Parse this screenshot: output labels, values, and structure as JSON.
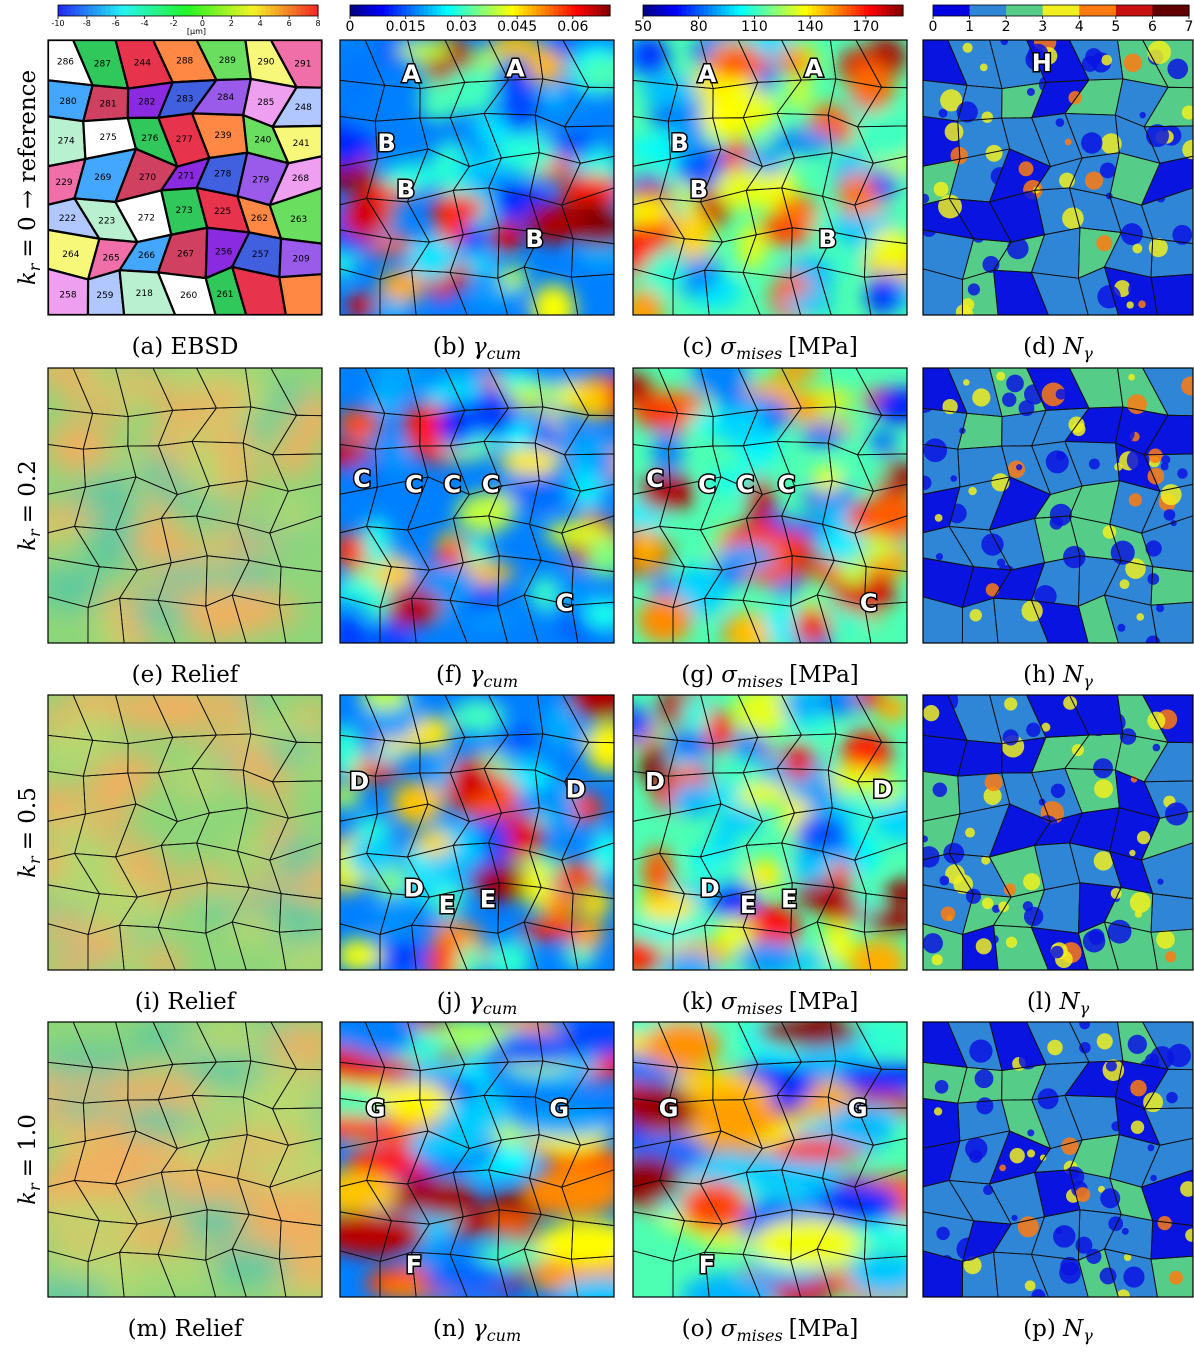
{
  "row_labels": [
    {
      "symbol": "k",
      "subscript": "r",
      "text": "= 0 → reference"
    },
    {
      "symbol": "k",
      "subscript": "r",
      "text": "= 0.2"
    },
    {
      "symbol": "k",
      "subscript": "r",
      "text": "= 0.5"
    },
    {
      "symbol": "k",
      "subscript": "r",
      "text": "= 1.0"
    }
  ],
  "colorbars": [
    {
      "range": [
        -10,
        8
      ],
      "ticks": [
        -10,
        -8,
        -6,
        -4,
        -2,
        0,
        2,
        4,
        6,
        8
      ],
      "unit": "[μm]"
    },
    {
      "range": [
        0,
        0.07
      ],
      "ticks": [
        0,
        0.015,
        0.03,
        0.045,
        0.06
      ]
    },
    {
      "range": [
        50,
        190
      ],
      "ticks": [
        50,
        80,
        110,
        140,
        170
      ]
    },
    {
      "range": [
        0,
        7
      ],
      "ticks": [
        0,
        1,
        2,
        3,
        4,
        5,
        6,
        7
      ]
    }
  ],
  "ebsd_grain_ids": [
    "286",
    "287",
    "244",
    "288",
    "289",
    "290",
    "291",
    "280",
    "281",
    "282",
    "283",
    "284",
    "285",
    "248",
    "274",
    "275",
    "276",
    "277",
    "239",
    "240",
    "241",
    "229",
    "269",
    "270",
    "271",
    "278",
    "279",
    "268",
    "222",
    "223",
    "272",
    "273",
    "225",
    "262",
    "263",
    "264",
    "265",
    "266",
    "267",
    "256",
    "257",
    "209",
    "258",
    "259",
    "218",
    "260",
    "261"
  ],
  "panels": [
    {
      "caption": {
        "label": "(a)",
        "text": "EBSD"
      }
    },
    {
      "caption": {
        "label": "(b)",
        "symbol": "γ",
        "subscript": "cum"
      },
      "annotations": [
        "A",
        "A",
        "B",
        "B",
        "B"
      ]
    },
    {
      "caption": {
        "label": "(c)",
        "symbol": "σ",
        "subscript": "mises",
        "unit": "[MPa]"
      },
      "annotations": [
        "A",
        "A",
        "B",
        "B",
        "B"
      ]
    },
    {
      "caption": {
        "label": "(d)",
        "symbol": "N",
        "subscript": "γ"
      },
      "annotations": [
        "H"
      ]
    },
    {
      "caption": {
        "label": "(e)",
        "text": "Relief"
      }
    },
    {
      "caption": {
        "label": "(f)",
        "symbol": "γ",
        "subscript": "cum"
      },
      "annotations": [
        "C",
        "C",
        "C",
        "C",
        "C"
      ]
    },
    {
      "caption": {
        "label": "(g)",
        "symbol": "σ",
        "subscript": "mises",
        "unit": "[MPa]"
      },
      "annotations": [
        "C",
        "C",
        "C",
        "C",
        "C"
      ]
    },
    {
      "caption": {
        "label": "(h)",
        "symbol": "N",
        "subscript": "γ"
      }
    },
    {
      "caption": {
        "label": "(i)",
        "text": "Relief"
      }
    },
    {
      "caption": {
        "label": "(j)",
        "symbol": "γ",
        "subscript": "cum"
      },
      "annotations": [
        "D",
        "D",
        "D",
        "E",
        "E"
      ]
    },
    {
      "caption": {
        "label": "(k)",
        "symbol": "σ",
        "subscript": "mises",
        "unit": "[MPa]"
      },
      "annotations": [
        "D",
        "D",
        "D",
        "E",
        "E"
      ]
    },
    {
      "caption": {
        "label": "(l)",
        "symbol": "N",
        "subscript": "γ"
      }
    },
    {
      "caption": {
        "label": "(m)",
        "text": "Relief"
      }
    },
    {
      "caption": {
        "label": "(n)",
        "symbol": "γ",
        "subscript": "cum"
      },
      "annotations": [
        "G",
        "G",
        "F"
      ]
    },
    {
      "caption": {
        "label": "(o)",
        "symbol": "σ",
        "subscript": "mises",
        "unit": "[MPa]"
      },
      "annotations": [
        "G",
        "G",
        "F"
      ]
    },
    {
      "caption": {
        "label": "(p)",
        "symbol": "N",
        "subscript": "γ"
      }
    }
  ]
}
